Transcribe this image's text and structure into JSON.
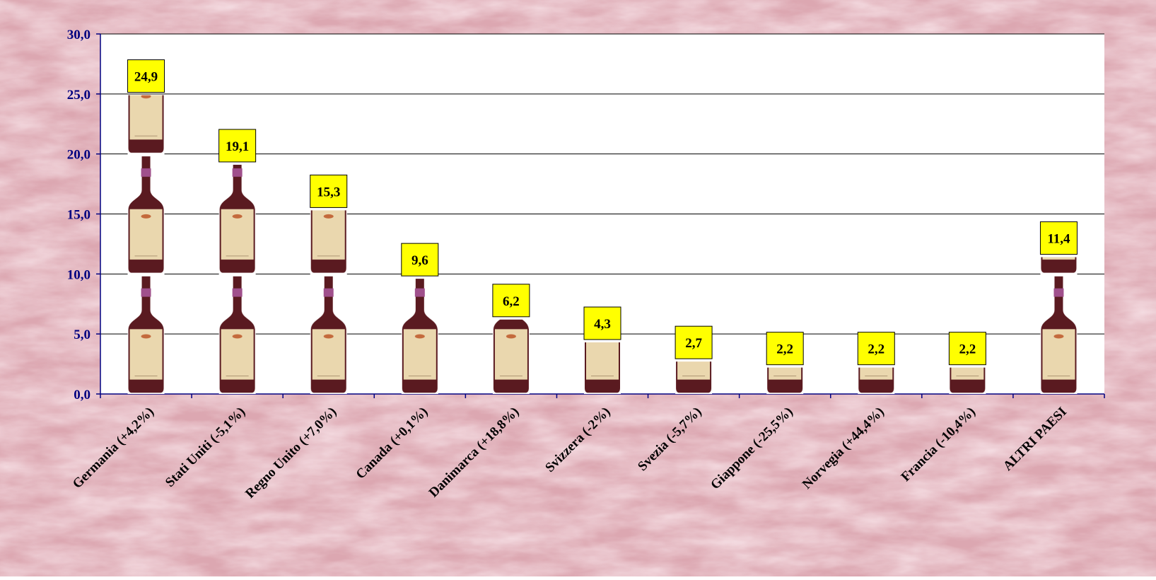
{
  "chart_data": {
    "type": "bar",
    "categories": [
      "Germania (+4,2%)",
      "Stati Uniti (-5,1%)",
      "Regno Unito (+7,0%)",
      "Canada (+0,1%)",
      "Danimarca (+18,8%)",
      "Svizzera (-2%)",
      "Svezia (-5,7%)",
      "Giappone (-25,5%)",
      "Norvegia (+44,4%)",
      "Francia (-10,4%)",
      "ALTRI PAESI"
    ],
    "values": [
      24.9,
      19.1,
      15.3,
      9.6,
      6.2,
      4.3,
      2.7,
      2.2,
      2.2,
      2.2,
      11.4
    ],
    "value_labels": [
      "24,9",
      "19,1",
      "15,3",
      "9,6",
      "6,2",
      "4,3",
      "2,7",
      "2,2",
      "2,2",
      "2,2",
      "11,4"
    ],
    "color": "#5a1a20",
    "ylim": [
      0,
      30
    ],
    "yticks": [
      {
        "value": 0,
        "label": "0,0"
      },
      {
        "value": 5,
        "label": "5,0"
      },
      {
        "value": 10,
        "label": "10,0"
      },
      {
        "value": 15,
        "label": "15,0"
      },
      {
        "value": 20,
        "label": "20,0"
      },
      {
        "value": 25,
        "label": "25,0"
      },
      {
        "value": 30,
        "label": "30,0"
      }
    ],
    "grid": true
  }
}
